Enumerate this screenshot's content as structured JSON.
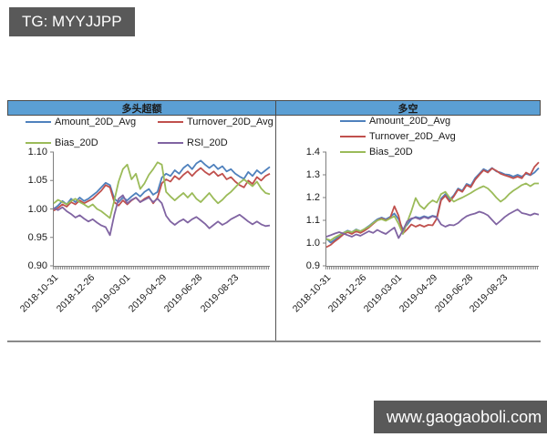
{
  "badges": {
    "tg": "TG: MYYJJPP",
    "site": "www.gaogaoboli.com"
  },
  "header_fill_color": "#5b9fd4",
  "badge_fill_color": "#595959",
  "chart_data": [
    {
      "type": "line",
      "title": "多头超额",
      "legend_columns": 2,
      "ylim": [
        0.9,
        1.1
      ],
      "y_ticks": [
        "1.10",
        "1.05",
        "1.00",
        "0.95",
        "0.90"
      ],
      "x_labels": [
        "2018-10-31",
        "2018-12-26",
        "2019-03-01",
        "2019-04-29",
        "2019-06-28",
        "2019-08-23"
      ],
      "grid": false,
      "series": [
        {
          "name": "Amount_20D_Avg",
          "color": "#4F81BD",
          "in_legend": true,
          "values": [
            1.0,
            1.006,
            1.014,
            1.008,
            1.018,
            1.012,
            1.02,
            1.014,
            1.018,
            1.024,
            1.03,
            1.038,
            1.046,
            1.042,
            1.018,
            1.012,
            1.02,
            1.015,
            1.022,
            1.028,
            1.022,
            1.03,
            1.035,
            1.025,
            1.03,
            1.055,
            1.062,
            1.058,
            1.068,
            1.062,
            1.072,
            1.078,
            1.07,
            1.08,
            1.085,
            1.078,
            1.072,
            1.078,
            1.07,
            1.075,
            1.066,
            1.07,
            1.062,
            1.057,
            1.053,
            1.065,
            1.058,
            1.068,
            1.062,
            1.068,
            1.074
          ]
        },
        {
          "name": "Turnover_20D_Avg",
          "color": "#C0504D",
          "in_legend": true,
          "values": [
            0.997,
            1.002,
            1.008,
            1.004,
            1.012,
            1.008,
            1.015,
            1.01,
            1.014,
            1.018,
            1.025,
            1.032,
            1.042,
            1.038,
            1.012,
            1.006,
            1.015,
            1.008,
            1.015,
            1.02,
            1.012,
            1.018,
            1.022,
            1.01,
            1.02,
            1.045,
            1.052,
            1.048,
            1.058,
            1.052,
            1.06,
            1.066,
            1.058,
            1.066,
            1.072,
            1.065,
            1.06,
            1.066,
            1.058,
            1.062,
            1.052,
            1.056,
            1.048,
            1.042,
            1.038,
            1.05,
            1.044,
            1.056,
            1.05,
            1.058,
            1.062
          ]
        },
        {
          "name": "Bias_20D",
          "color": "#9BBB59",
          "in_legend": true,
          "values": [
            1.01,
            1.016,
            1.012,
            1.008,
            1.014,
            1.018,
            1.012,
            1.008,
            1.003,
            1.008,
            1.0,
            0.996,
            0.99,
            0.984,
            1.015,
            1.048,
            1.07,
            1.078,
            1.052,
            1.062,
            1.035,
            1.045,
            1.06,
            1.07,
            1.082,
            1.078,
            1.03,
            1.022,
            1.015,
            1.022,
            1.028,
            1.02,
            1.028,
            1.018,
            1.012,
            1.02,
            1.028,
            1.018,
            1.01,
            1.016,
            1.024,
            1.03,
            1.038,
            1.046,
            1.052,
            1.046,
            1.04,
            1.048,
            1.036,
            1.028,
            1.026
          ]
        },
        {
          "name": "RSI_20D",
          "color": "#8064A2",
          "in_legend": true,
          "values": [
            1.002,
            0.998,
            1.003,
            0.996,
            0.991,
            0.985,
            0.989,
            0.983,
            0.978,
            0.982,
            0.976,
            0.971,
            0.968,
            0.954,
            0.99,
            1.018,
            1.024,
            1.01,
            1.016,
            1.02,
            1.012,
            1.016,
            1.02,
            1.012,
            1.018,
            1.01,
            0.988,
            0.978,
            0.972,
            0.978,
            0.982,
            0.976,
            0.982,
            0.986,
            0.98,
            0.974,
            0.966,
            0.972,
            0.978,
            0.972,
            0.976,
            0.982,
            0.986,
            0.99,
            0.984,
            0.978,
            0.973,
            0.978,
            0.973,
            0.97,
            0.971
          ]
        }
      ]
    },
    {
      "type": "line",
      "title": "多空",
      "legend_columns": 1,
      "ylim": [
        0.9,
        1.4
      ],
      "y_ticks": [
        "1.4",
        "1.3",
        "1.2",
        "1.1",
        "1.0",
        "0.9"
      ],
      "x_labels": [
        "2018-10-31",
        "2018-12-26",
        "2019-03-01",
        "2019-04-29",
        "2019-06-28",
        "2019-08-23"
      ],
      "grid": false,
      "series": [
        {
          "name": "Amount_20D_Avg",
          "color": "#4F81BD",
          "in_legend": true,
          "values": [
            1.02,
            1.002,
            1.015,
            1.03,
            1.045,
            1.055,
            1.048,
            1.06,
            1.052,
            1.062,
            1.075,
            1.09,
            1.105,
            1.112,
            1.105,
            1.115,
            1.13,
            1.105,
            1.06,
            1.08,
            1.105,
            1.115,
            1.11,
            1.118,
            1.112,
            1.12,
            1.115,
            1.195,
            1.215,
            1.19,
            1.21,
            1.24,
            1.23,
            1.26,
            1.252,
            1.285,
            1.305,
            1.325,
            1.315,
            1.33,
            1.315,
            1.31,
            1.302,
            1.3,
            1.292,
            1.3,
            1.292,
            1.305,
            1.298,
            1.31,
            1.33
          ]
        },
        {
          "name": "Turnover_20D_Avg",
          "color": "#C0504D",
          "in_legend": true,
          "values": [
            0.982,
            0.992,
            1.008,
            1.022,
            1.038,
            1.048,
            1.04,
            1.052,
            1.045,
            1.055,
            1.068,
            1.085,
            1.1,
            1.108,
            1.1,
            1.11,
            1.162,
            1.12,
            1.042,
            1.06,
            1.082,
            1.072,
            1.08,
            1.072,
            1.08,
            1.078,
            1.108,
            1.188,
            1.208,
            1.182,
            1.205,
            1.235,
            1.225,
            1.255,
            1.245,
            1.278,
            1.3,
            1.32,
            1.31,
            1.328,
            1.318,
            1.305,
            1.298,
            1.292,
            1.285,
            1.292,
            1.285,
            1.31,
            1.3,
            1.335,
            1.355
          ]
        },
        {
          "name": "Bias_20D",
          "color": "#9BBB59",
          "in_legend": true,
          "values": [
            1.018,
            1.012,
            1.025,
            1.035,
            1.045,
            1.052,
            1.048,
            1.058,
            1.052,
            1.062,
            1.072,
            1.088,
            1.1,
            1.105,
            1.098,
            1.108,
            1.118,
            1.085,
            1.04,
            1.09,
            1.14,
            1.198,
            1.165,
            1.15,
            1.172,
            1.188,
            1.178,
            1.215,
            1.225,
            1.2,
            1.182,
            1.192,
            1.2,
            1.21,
            1.22,
            1.232,
            1.242,
            1.25,
            1.24,
            1.222,
            1.2,
            1.182,
            1.195,
            1.215,
            1.23,
            1.242,
            1.255,
            1.262,
            1.25,
            1.262,
            1.262
          ]
        },
        {
          "name": "RSI_20D",
          "color": "#8064A2",
          "in_legend": false,
          "values": [
            1.028,
            1.035,
            1.042,
            1.048,
            1.042,
            1.035,
            1.028,
            1.038,
            1.032,
            1.042,
            1.052,
            1.045,
            1.058,
            1.048,
            1.04,
            1.055,
            1.068,
            1.022,
            1.055,
            1.095,
            1.108,
            1.112,
            1.105,
            1.115,
            1.108,
            1.118,
            1.112,
            1.082,
            1.072,
            1.08,
            1.078,
            1.088,
            1.105,
            1.118,
            1.125,
            1.13,
            1.138,
            1.132,
            1.122,
            1.102,
            1.082,
            1.098,
            1.115,
            1.128,
            1.138,
            1.148,
            1.132,
            1.128,
            1.122,
            1.13,
            1.125
          ]
        }
      ]
    }
  ]
}
